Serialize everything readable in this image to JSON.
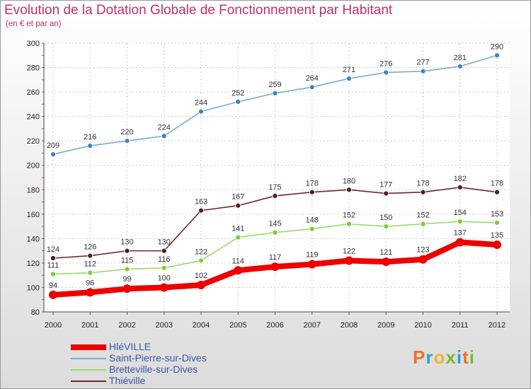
{
  "title": "Evolution de la Dotation Globale de Fonctionnement par Habitant",
  "subtitle": "(en € et par an)",
  "logo": {
    "text": "Proxiti",
    "letters": [
      "P",
      "r",
      "o",
      "x",
      "i",
      "t",
      "i"
    ],
    "colors": [
      "#e8732a",
      "#2aa0d8",
      "#e8b82a",
      "#7ab82a",
      "#2aa0d8",
      "#e8732a",
      "#7ab82a"
    ]
  },
  "chart_data": {
    "type": "line",
    "title": "Evolution de la Dotation Globale de Fonctionnement par Habitant",
    "ylabel": "(en € et par an)",
    "x": [
      "2000",
      "2001",
      "2002",
      "2003",
      "2004",
      "2005",
      "2006",
      "2007",
      "2008",
      "2009",
      "2010",
      "2011",
      "2012"
    ],
    "ylim": [
      80,
      300
    ],
    "yticks": [
      "80",
      "100",
      "120",
      "140",
      "160",
      "180",
      "200",
      "220",
      "240",
      "260",
      "280",
      "300"
    ],
    "series": [
      {
        "name": "HléVILLE",
        "color": "#ee0000",
        "marker": "#ee0000",
        "values": [
          94,
          96,
          99,
          100,
          102,
          114,
          117,
          119,
          122,
          121,
          123,
          137,
          135
        ]
      },
      {
        "name": "Saint-Pierre-sur-Dives",
        "color": "#7aaad2",
        "marker": "#3a82c8",
        "values": [
          209,
          216,
          220,
          224,
          244,
          252,
          259,
          264,
          271,
          276,
          277,
          281,
          290
        ]
      },
      {
        "name": "Bretteville-sur-Dives",
        "color": "#9ad86a",
        "marker": "#7acc3a",
        "values": [
          111,
          112,
          115,
          116,
          122,
          141,
          145,
          148,
          152,
          150,
          152,
          154,
          153
        ]
      },
      {
        "name": "Thiéville",
        "color": "#6a2a2a",
        "marker": "#5a1a1a",
        "values": [
          124,
          126,
          130,
          130,
          163,
          167,
          175,
          178,
          180,
          177,
          178,
          182,
          178
        ]
      }
    ]
  }
}
